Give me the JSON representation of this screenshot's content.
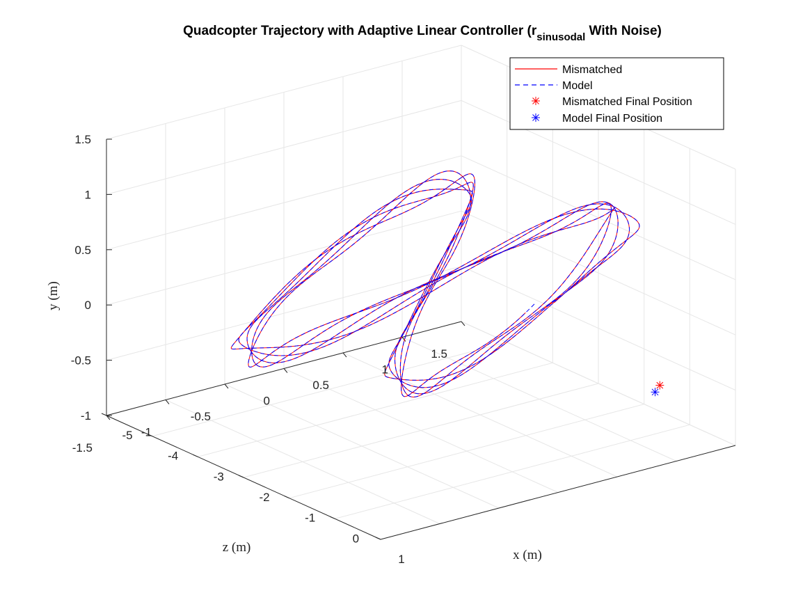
{
  "chart_data": {
    "type": "line",
    "title": "Quadcopter Trajectory with Adaptive Linear Controller (r",
    "title_subscript": "sinusodal",
    "title_suffix": " With Noise)",
    "xlabel": "x (m)",
    "ylabel": "y (m)",
    "zlabel": "z (m)",
    "xlim": [
      -5,
      1
    ],
    "ylim": [
      -1,
      1.5
    ],
    "zlim": [
      -1.5,
      1.5
    ],
    "x_ticks": [
      "-5",
      "-4",
      "-3",
      "-2",
      "-1",
      "0",
      "1"
    ],
    "y_ticks": [
      "-1",
      "-0.5",
      "0",
      "0.5",
      "1",
      "1.5"
    ],
    "z_ticks": [
      "-1.5",
      "-1",
      "-0.5",
      "0",
      "0.5",
      "1",
      "1.5"
    ],
    "grid": true,
    "legend_position": "top-right",
    "legend": [
      {
        "label": "Mismatched",
        "style": "solid-line",
        "color": "#ff0000"
      },
      {
        "label": "Model",
        "style": "dashed-line",
        "color": "#0000ff"
      },
      {
        "label": "Mismatched Final Position",
        "style": "star-marker",
        "color": "#ff0000"
      },
      {
        "label": "Model Final Position",
        "style": "star-marker",
        "color": "#0000ff"
      }
    ],
    "series": [
      {
        "name": "Mismatched",
        "color": "#ff0000",
        "line": "solid",
        "loops": 5,
        "final_position": [
          0.07,
          -0.55,
          1.22
        ]
      },
      {
        "name": "Model",
        "color": "#0000ff",
        "line": "dashed",
        "loops": 5,
        "final_position": [
          0.07,
          -0.6,
          1.18
        ]
      }
    ]
  }
}
